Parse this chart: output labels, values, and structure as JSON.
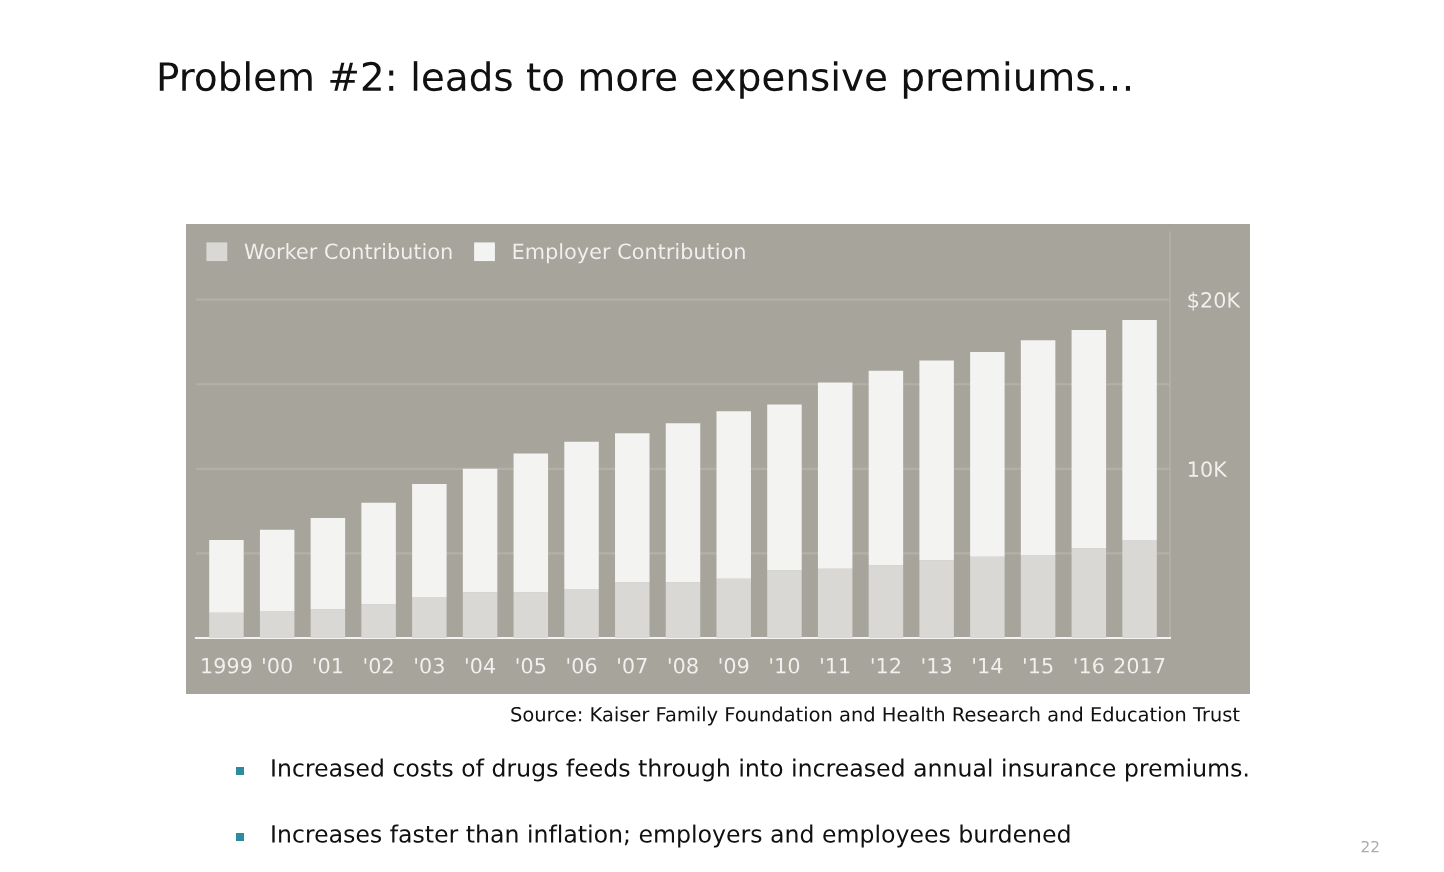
{
  "chart_data": {
    "type": "bar",
    "title": "Problem #2: leads to more expensive premiums…",
    "categories": [
      "1999",
      "'00",
      "'01",
      "'02",
      "'03",
      "'04",
      "'05",
      "'06",
      "'07",
      "'08",
      "'09",
      "'10",
      "'11",
      "'12",
      "'13",
      "'14",
      "'15",
      "'16",
      "2017"
    ],
    "stacked": true,
    "series": [
      {
        "name": "Worker Contribution",
        "color": "#d9d8d4",
        "values": [
          1500,
          1600,
          1700,
          2000,
          2400,
          2700,
          2700,
          2900,
          3300,
          3300,
          3500,
          4000,
          4100,
          4300,
          4600,
          4800,
          4900,
          5300,
          5800
        ]
      },
      {
        "name": "Employer Contribution",
        "color": "#f3f3f1",
        "values": [
          4300,
          4800,
          5400,
          6000,
          6700,
          7300,
          8200,
          8700,
          8800,
          9400,
          9900,
          9800,
          11000,
          11500,
          11800,
          12100,
          12700,
          12900,
          13000
        ]
      }
    ],
    "ylim": [
      0,
      24000
    ],
    "yticks": [
      {
        "value": 0,
        "label": null
      },
      {
        "value": 5000,
        "label": null
      },
      {
        "value": 10000,
        "label": "10K"
      },
      {
        "value": 15000,
        "label": null
      },
      {
        "value": 20000,
        "label": "$20K"
      }
    ],
    "grid": "y",
    "legend": "top left",
    "annotations": [
      "Source: Kaiser Family Foundation and Health Research and Education Trust",
      "Increased costs of drugs feeds through into increased annual insurance premiums.",
      "Increases faster than inflation; employers and employees burdened",
      "22"
    ]
  }
}
